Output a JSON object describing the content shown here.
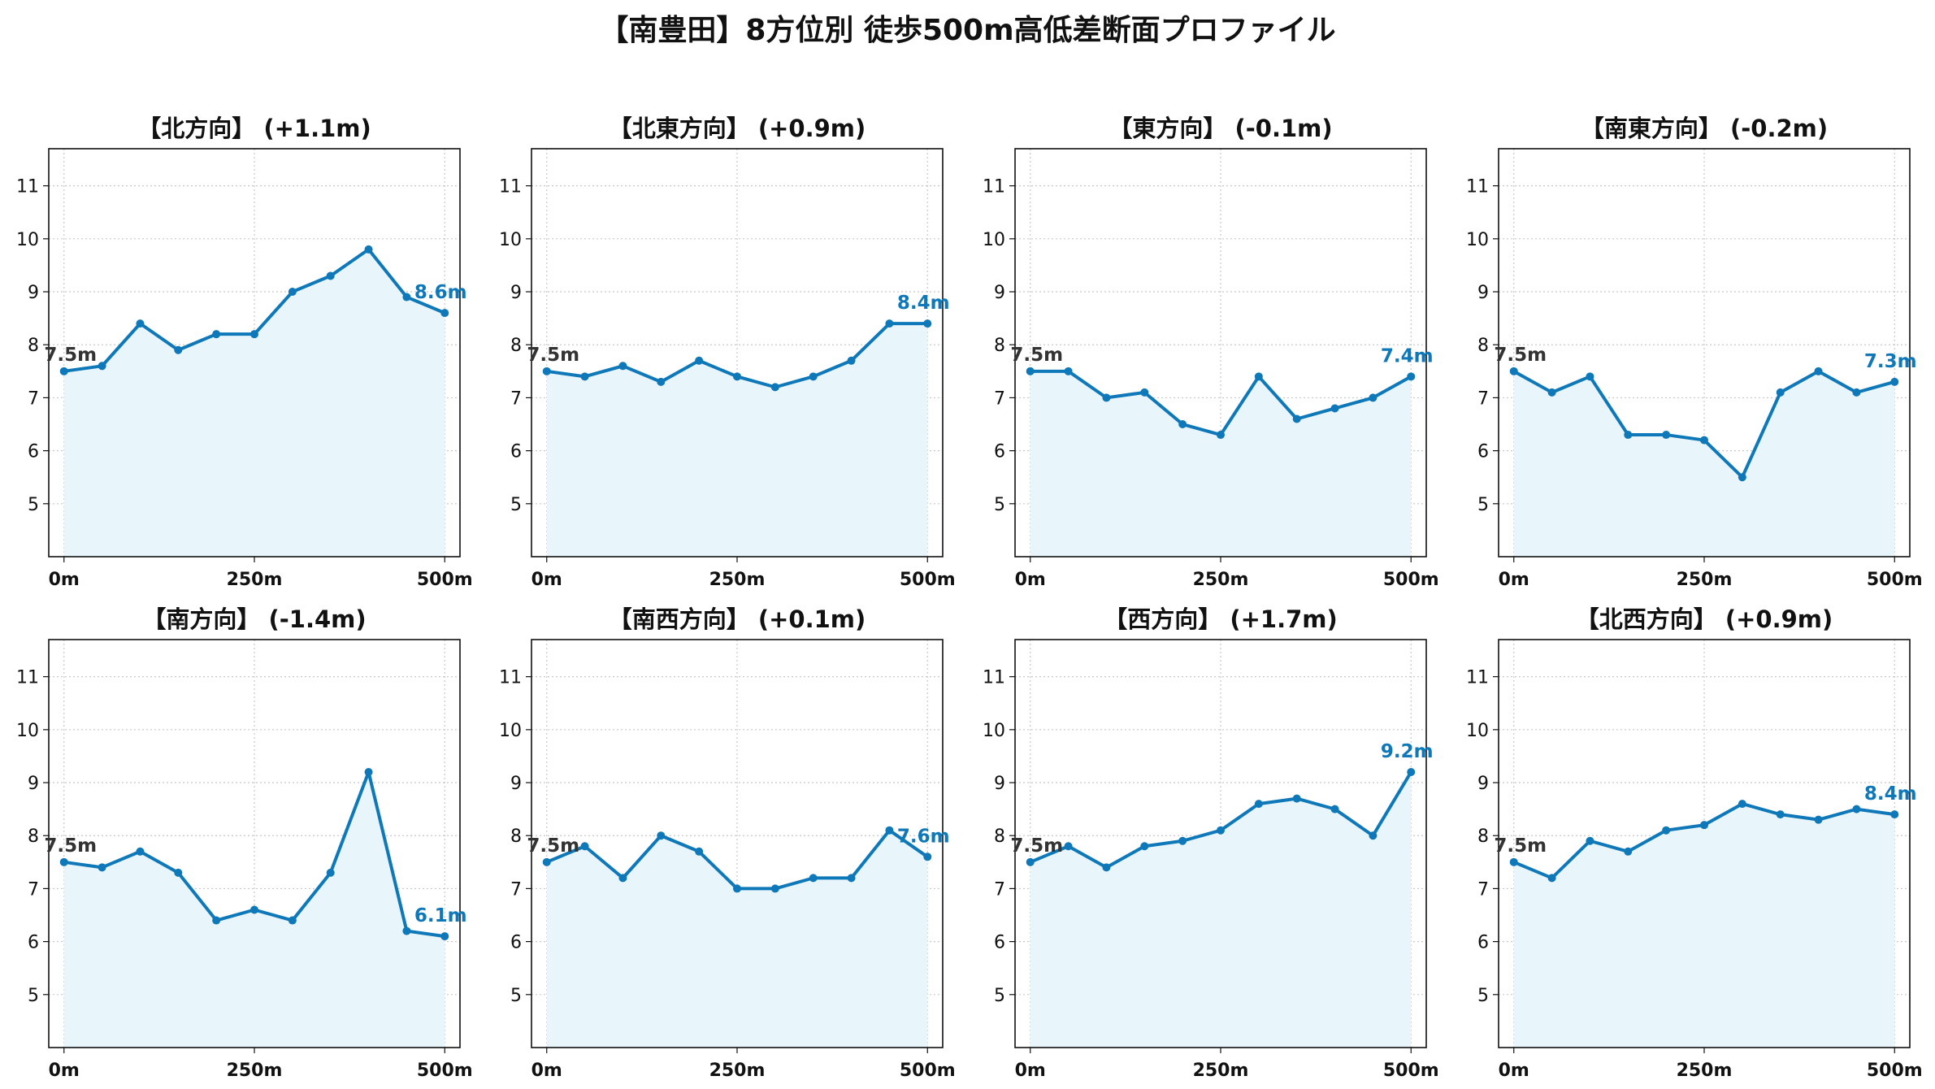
{
  "title": "【南豊田】8方位別 徒歩500m高低差断面プロファイル",
  "colors": {
    "line": "#0e78b8",
    "fill": "#e8f5fb",
    "grid": "#c8c8c8",
    "axis": "#111111"
  },
  "chart_data": [
    {
      "type": "line",
      "title": "【北方向】 (+1.1m)",
      "x": [
        0,
        50,
        100,
        150,
        200,
        250,
        300,
        350,
        400,
        450,
        500
      ],
      "values": [
        7.5,
        7.6,
        8.4,
        7.9,
        8.2,
        8.2,
        9.0,
        9.3,
        9.8,
        8.9,
        8.6
      ],
      "start_label": "7.5m",
      "end_label": "8.6m",
      "xticks": [
        "0m",
        "250m",
        "500m"
      ],
      "xtick_values": [
        0,
        250,
        500
      ],
      "yticks": [
        "5",
        "6",
        "7",
        "8",
        "9",
        "10",
        "11"
      ],
      "ytick_values": [
        5,
        6,
        7,
        8,
        9,
        10,
        11
      ],
      "xlim": [
        -20,
        520
      ],
      "ylim": [
        4.0,
        11.7
      ],
      "grid": true,
      "fill": true
    },
    {
      "type": "line",
      "title": "【北東方向】 (+0.9m)",
      "x": [
        0,
        50,
        100,
        150,
        200,
        250,
        300,
        350,
        400,
        450,
        500
      ],
      "values": [
        7.5,
        7.4,
        7.6,
        7.3,
        7.7,
        7.4,
        7.2,
        7.4,
        7.7,
        8.4,
        8.4
      ],
      "start_label": "7.5m",
      "end_label": "8.4m",
      "xticks": [
        "0m",
        "250m",
        "500m"
      ],
      "xtick_values": [
        0,
        250,
        500
      ],
      "yticks": [
        "5",
        "6",
        "7",
        "8",
        "9",
        "10",
        "11"
      ],
      "ytick_values": [
        5,
        6,
        7,
        8,
        9,
        10,
        11
      ],
      "xlim": [
        -20,
        520
      ],
      "ylim": [
        4.0,
        11.7
      ],
      "grid": true,
      "fill": true
    },
    {
      "type": "line",
      "title": "【東方向】 (-0.1m)",
      "x": [
        0,
        50,
        100,
        150,
        200,
        250,
        300,
        350,
        400,
        450,
        500
      ],
      "values": [
        7.5,
        7.5,
        7.0,
        7.1,
        6.5,
        6.3,
        7.4,
        6.6,
        6.8,
        7.0,
        7.4
      ],
      "start_label": "7.5m",
      "end_label": "7.4m",
      "xticks": [
        "0m",
        "250m",
        "500m"
      ],
      "xtick_values": [
        0,
        250,
        500
      ],
      "yticks": [
        "5",
        "6",
        "7",
        "8",
        "9",
        "10",
        "11"
      ],
      "ytick_values": [
        5,
        6,
        7,
        8,
        9,
        10,
        11
      ],
      "xlim": [
        -20,
        520
      ],
      "ylim": [
        4.0,
        11.7
      ],
      "grid": true,
      "fill": true
    },
    {
      "type": "line",
      "title": "【南東方向】 (-0.2m)",
      "x": [
        0,
        50,
        100,
        150,
        200,
        250,
        300,
        350,
        400,
        450,
        500
      ],
      "values": [
        7.5,
        7.1,
        7.4,
        6.3,
        6.3,
        6.2,
        5.5,
        7.1,
        7.5,
        7.1,
        7.3
      ],
      "start_label": "7.5m",
      "end_label": "7.3m",
      "xticks": [
        "0m",
        "250m",
        "500m"
      ],
      "xtick_values": [
        0,
        250,
        500
      ],
      "yticks": [
        "5",
        "6",
        "7",
        "8",
        "9",
        "10",
        "11"
      ],
      "ytick_values": [
        5,
        6,
        7,
        8,
        9,
        10,
        11
      ],
      "xlim": [
        -20,
        520
      ],
      "ylim": [
        4.0,
        11.7
      ],
      "grid": true,
      "fill": true
    },
    {
      "type": "line",
      "title": "【南方向】 (-1.4m)",
      "x": [
        0,
        50,
        100,
        150,
        200,
        250,
        300,
        350,
        400,
        450,
        500
      ],
      "values": [
        7.5,
        7.4,
        7.7,
        7.3,
        6.4,
        6.6,
        6.4,
        7.3,
        9.2,
        6.2,
        6.1
      ],
      "start_label": "7.5m",
      "end_label": "6.1m",
      "xticks": [
        "0m",
        "250m",
        "500m"
      ],
      "xtick_values": [
        0,
        250,
        500
      ],
      "yticks": [
        "5",
        "6",
        "7",
        "8",
        "9",
        "10",
        "11"
      ],
      "ytick_values": [
        5,
        6,
        7,
        8,
        9,
        10,
        11
      ],
      "xlim": [
        -20,
        520
      ],
      "ylim": [
        4.0,
        11.7
      ],
      "grid": true,
      "fill": true
    },
    {
      "type": "line",
      "title": "【南西方向】 (+0.1m)",
      "x": [
        0,
        50,
        100,
        150,
        200,
        250,
        300,
        350,
        400,
        450,
        500
      ],
      "values": [
        7.5,
        7.8,
        7.2,
        8.0,
        7.7,
        7.0,
        7.0,
        7.2,
        7.2,
        8.1,
        7.6
      ],
      "start_label": "7.5m",
      "end_label": "7.6m",
      "xticks": [
        "0m",
        "250m",
        "500m"
      ],
      "xtick_values": [
        0,
        250,
        500
      ],
      "yticks": [
        "5",
        "6",
        "7",
        "8",
        "9",
        "10",
        "11"
      ],
      "ytick_values": [
        5,
        6,
        7,
        8,
        9,
        10,
        11
      ],
      "xlim": [
        -20,
        520
      ],
      "ylim": [
        4.0,
        11.7
      ],
      "grid": true,
      "fill": true
    },
    {
      "type": "line",
      "title": "【西方向】 (+1.7m)",
      "x": [
        0,
        50,
        100,
        150,
        200,
        250,
        300,
        350,
        400,
        450,
        500
      ],
      "values": [
        7.5,
        7.8,
        7.4,
        7.8,
        7.9,
        8.1,
        8.6,
        8.7,
        8.5,
        8.0,
        9.2
      ],
      "start_label": "7.5m",
      "end_label": "9.2m",
      "xticks": [
        "0m",
        "250m",
        "500m"
      ],
      "xtick_values": [
        0,
        250,
        500
      ],
      "yticks": [
        "5",
        "6",
        "7",
        "8",
        "9",
        "10",
        "11"
      ],
      "ytick_values": [
        5,
        6,
        7,
        8,
        9,
        10,
        11
      ],
      "xlim": [
        -20,
        520
      ],
      "ylim": [
        4.0,
        11.7
      ],
      "grid": true,
      "fill": true
    },
    {
      "type": "line",
      "title": "【北西方向】 (+0.9m)",
      "x": [
        0,
        50,
        100,
        150,
        200,
        250,
        300,
        350,
        400,
        450,
        500
      ],
      "values": [
        7.5,
        7.2,
        7.9,
        7.7,
        8.1,
        8.2,
        8.6,
        8.4,
        8.3,
        8.5,
        8.4
      ],
      "start_label": "7.5m",
      "end_label": "8.4m",
      "xticks": [
        "0m",
        "250m",
        "500m"
      ],
      "xtick_values": [
        0,
        250,
        500
      ],
      "yticks": [
        "5",
        "6",
        "7",
        "8",
        "9",
        "10",
        "11"
      ],
      "ytick_values": [
        5,
        6,
        7,
        8,
        9,
        10,
        11
      ],
      "xlim": [
        -20,
        520
      ],
      "ylim": [
        4.0,
        11.7
      ],
      "grid": true,
      "fill": true
    }
  ]
}
